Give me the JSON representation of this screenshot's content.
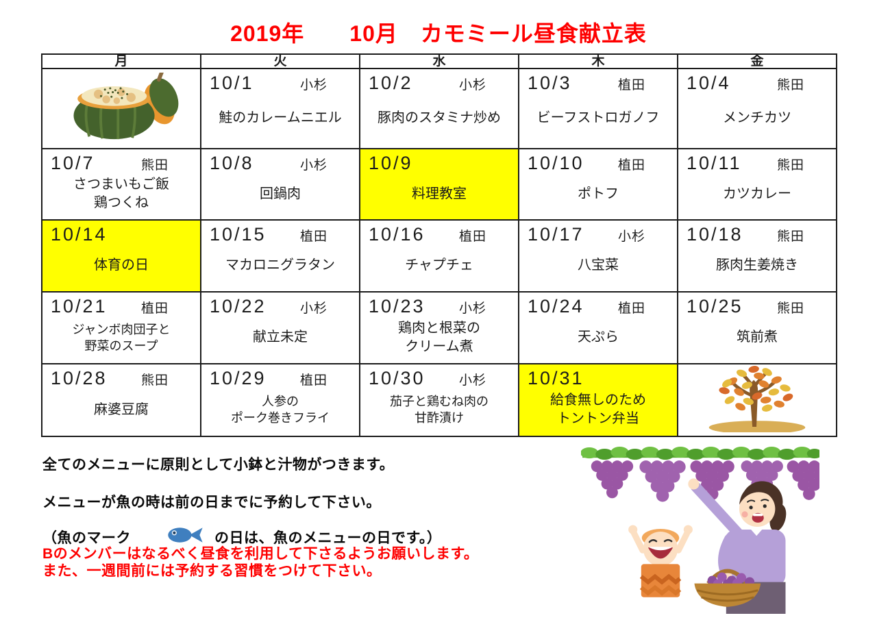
{
  "title": "2019年　　10月　カモミール昼食献立表",
  "calendar": {
    "day_headers": [
      "月",
      "火",
      "水",
      "木",
      "金"
    ],
    "weeks": [
      [
        {
          "image": "pumpkin-gratin"
        },
        {
          "date": "10/1",
          "staff": "小杉",
          "menu": [
            "鮭のカレームニエル"
          ]
        },
        {
          "date": "10/2",
          "staff": "小杉",
          "menu": [
            "豚肉のスタミナ炒め"
          ]
        },
        {
          "date": "10/3",
          "staff": "植田",
          "menu": [
            "ビーフストロガノフ"
          ]
        },
        {
          "date": "10/4",
          "staff": "熊田",
          "menu": [
            "メンチカツ"
          ]
        }
      ],
      [
        {
          "date": "10/7",
          "staff": "熊田",
          "menu": [
            "さつまいもご飯",
            "鶏つくね"
          ]
        },
        {
          "date": "10/8",
          "staff": "小杉",
          "menu": [
            "回鍋肉"
          ]
        },
        {
          "date": "10/9",
          "staff": "",
          "menu": [
            "料理教室"
          ],
          "highlight": true
        },
        {
          "date": "10/10",
          "staff": "植田",
          "menu": [
            "ポトフ"
          ]
        },
        {
          "date": "10/11",
          "staff": "熊田",
          "menu": [
            "カツカレー"
          ]
        }
      ],
      [
        {
          "date": "10/14",
          "staff": "",
          "menu": [
            "体育の日"
          ],
          "highlight": true
        },
        {
          "date": "10/15",
          "staff": "植田",
          "menu": [
            "マカロニグラタン"
          ]
        },
        {
          "date": "10/16",
          "staff": "植田",
          "menu": [
            "チャプチェ"
          ]
        },
        {
          "date": "10/17",
          "staff": "小杉",
          "menu": [
            "八宝菜"
          ]
        },
        {
          "date": "10/18",
          "staff": "熊田",
          "menu": [
            "豚肉生姜焼き"
          ]
        }
      ],
      [
        {
          "date": "10/21",
          "staff": "植田",
          "menu": [
            "ジャンボ肉団子と",
            "野菜のスープ"
          ]
        },
        {
          "date": "10/22",
          "staff": "小杉",
          "menu": [
            "献立未定"
          ]
        },
        {
          "date": "10/23",
          "staff": "小杉",
          "menu": [
            "鶏肉と根菜の",
            "クリーム煮"
          ]
        },
        {
          "date": "10/24",
          "staff": "植田",
          "menu": [
            "天ぷら"
          ]
        },
        {
          "date": "10/25",
          "staff": "熊田",
          "menu": [
            "筑前煮"
          ]
        }
      ],
      [
        {
          "date": "10/28",
          "staff": "熊田",
          "menu": [
            "麻婆豆腐"
          ]
        },
        {
          "date": "10/29",
          "staff": "植田",
          "menu": [
            "人参の",
            "ポーク巻きフライ"
          ]
        },
        {
          "date": "10/30",
          "staff": "小杉",
          "menu": [
            "茄子と鶏むね肉の",
            "甘酢漬け"
          ]
        },
        {
          "date": "10/31",
          "staff": "",
          "menu": [
            "給食無しのため",
            "トントン弁当"
          ],
          "highlight": true
        },
        {
          "image": "autumn-tree"
        }
      ]
    ]
  },
  "notes": {
    "line1": "全てのメニューに原則として小鉢と汁物がつきます。",
    "line2": "メニューが魚の時は前の日までに予約して下さい。",
    "fish_prefix": "（魚のマーク",
    "fish_suffix": "の日は、魚のメニューの日です。）",
    "red1": "Bのメンバーはなるべく昼食を利用して下さるようお願いします。",
    "red2": "また、一週間前には予約する習慣をつけて下さい。"
  },
  "icons": {
    "fish": "fish-icon",
    "pumpkin": "pumpkin-gratin-illustration",
    "tree": "autumn-tree-illustration",
    "grapes": "grape-picking-illustration"
  },
  "colors": {
    "title_red": "#fe0000",
    "note_red": "#fe0000",
    "highlight_yellow": "#ffff00",
    "fish_blue": "#3f7fbf",
    "border_black": "#1b1b1b"
  }
}
